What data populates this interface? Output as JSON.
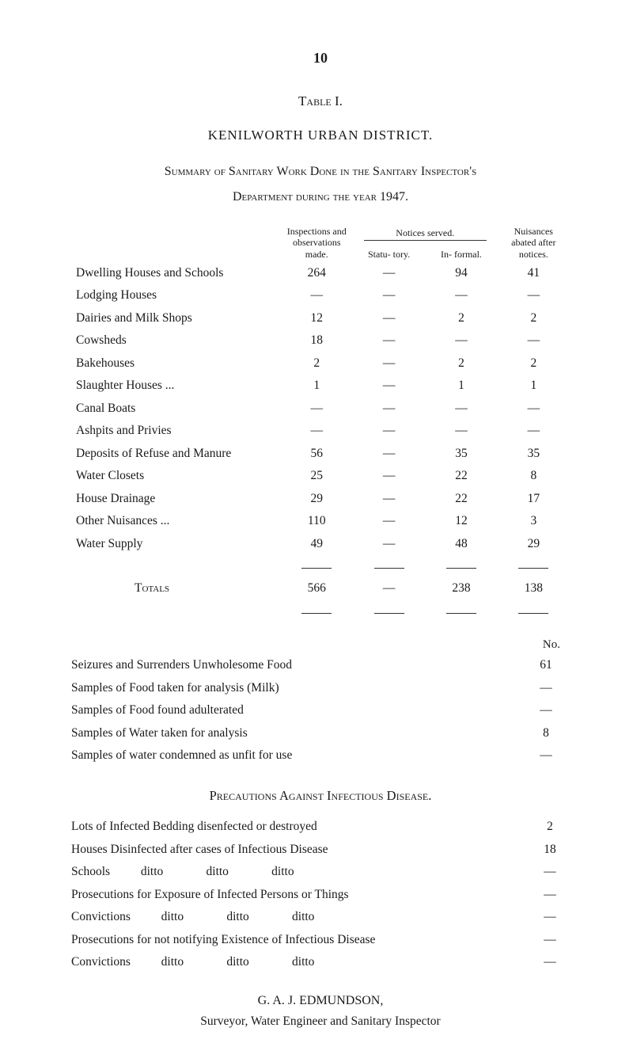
{
  "page_number": "10",
  "table_label": "Table I.",
  "district_title": "KENILWORTH URBAN DISTRICT.",
  "summary_line": "Summary of Sanitary Work Done in the Sanitary Inspector's",
  "dept_line": "Department during the year 1947.",
  "headers": {
    "inspections": "Inspections and observations made.",
    "notices_served": "Notices served.",
    "statutory": "Statu- tory.",
    "informal": "In- formal.",
    "nuisances": "Nuisances abated after notices."
  },
  "rows": [
    {
      "label": "Dwelling Houses and Schools",
      "insp": "264",
      "stat": "—",
      "inf": "94",
      "nuis": "41"
    },
    {
      "label": "Lodging Houses",
      "insp": "—",
      "stat": "—",
      "inf": "—",
      "nuis": "—"
    },
    {
      "label": "Dairies and Milk Shops",
      "insp": "12",
      "stat": "—",
      "inf": "2",
      "nuis": "2"
    },
    {
      "label": "Cowsheds",
      "insp": "18",
      "stat": "—",
      "inf": "—",
      "nuis": "—"
    },
    {
      "label": "Bakehouses",
      "insp": "2",
      "stat": "—",
      "inf": "2",
      "nuis": "2"
    },
    {
      "label": "Slaughter Houses ...",
      "insp": "1",
      "stat": "—",
      "inf": "1",
      "nuis": "1"
    },
    {
      "label": "Canal Boats",
      "insp": "—",
      "stat": "—",
      "inf": "—",
      "nuis": "—"
    },
    {
      "label": "Ashpits and Privies",
      "insp": "—",
      "stat": "—",
      "inf": "—",
      "nuis": "—"
    },
    {
      "label": "Deposits of Refuse and Manure",
      "insp": "56",
      "stat": "—",
      "inf": "35",
      "nuis": "35"
    },
    {
      "label": "Water Closets",
      "insp": "25",
      "stat": "—",
      "inf": "22",
      "nuis": "8"
    },
    {
      "label": "House Drainage",
      "insp": "29",
      "stat": "—",
      "inf": "22",
      "nuis": "17"
    },
    {
      "label": "Other Nuisances ...",
      "insp": "110",
      "stat": "—",
      "inf": "12",
      "nuis": "3"
    },
    {
      "label": "Water Supply",
      "insp": "49",
      "stat": "—",
      "inf": "48",
      "nuis": "29"
    }
  ],
  "totals": {
    "label": "Totals",
    "insp": "566",
    "stat": "—",
    "inf": "238",
    "nuis": "138"
  },
  "secondary_header": "No.",
  "secondary_rows": [
    {
      "label": "Seizures and Surrenders Unwholesome Food",
      "val": "61"
    },
    {
      "label": "Samples of Food taken for analysis (Milk)",
      "val": "—"
    },
    {
      "label": "Samples of Food found adulterated",
      "val": "—"
    },
    {
      "label": "Samples of Water taken for analysis",
      "val": "8"
    },
    {
      "label": "Samples of water condemned as unfit for use",
      "val": "—"
    }
  ],
  "precautions_head": "Precautions Against Infectious Disease.",
  "bottom_rows": [
    {
      "label": "Lots of Infected Bedding disenfected or destroyed",
      "val": "2"
    },
    {
      "label": "Houses Disinfected after cases of Infectious Disease",
      "val": "18"
    },
    {
      "label": "Schools          ditto              ditto              ditto",
      "val": "—"
    },
    {
      "label": "Prosecutions for Exposure of Infected Persons or Things",
      "val": "—"
    },
    {
      "label": "Convictions          ditto              ditto              ditto",
      "val": "—"
    },
    {
      "label": "Prosecutions for not notifying Existence of Infectious Disease",
      "val": "—"
    },
    {
      "label": "Convictions          ditto              ditto              ditto",
      "val": "—"
    }
  ],
  "signature_name": "G. A. J. EDMUNDSON,",
  "signature_title": "Surveyor, Water Engineer and Sanitary Inspector"
}
